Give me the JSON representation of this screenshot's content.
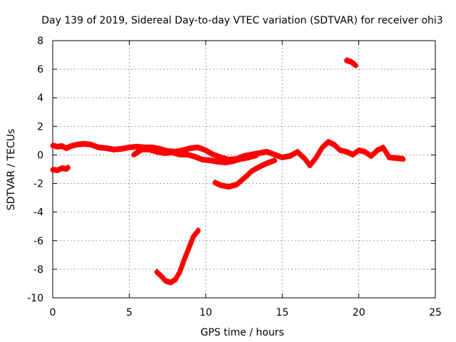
{
  "chart_data": {
    "type": "line",
    "title": "Day 139 of 2019, Sidereal Day-to-day VTEC variation (SDTVAR) for receiver ohi3",
    "xlabel": "GPS time / hours",
    "ylabel": "SDTVAR / TECUs",
    "xlim": [
      0,
      25
    ],
    "ylim": [
      -10,
      8
    ],
    "xticks": [
      0,
      5,
      10,
      15,
      20,
      25
    ],
    "yticks": [
      -10,
      -8,
      -6,
      -4,
      -2,
      0,
      2,
      4,
      6,
      8
    ],
    "grid": true,
    "series_color": "#ff0000",
    "series": [
      {
        "name": "main-band",
        "values": [
          [
            0.0,
            0.65
          ],
          [
            0.3,
            0.55
          ],
          [
            0.6,
            0.6
          ],
          [
            0.9,
            0.45
          ],
          [
            1.2,
            0.6
          ],
          [
            1.6,
            0.7
          ],
          [
            2.0,
            0.75
          ],
          [
            2.5,
            0.7
          ],
          [
            3.0,
            0.5
          ],
          [
            3.5,
            0.45
          ],
          [
            4.0,
            0.35
          ],
          [
            4.5,
            0.4
          ],
          [
            5.0,
            0.5
          ],
          [
            5.5,
            0.55
          ],
          [
            6.0,
            0.5
          ],
          [
            6.5,
            0.5
          ],
          [
            7.0,
            0.4
          ],
          [
            7.5,
            0.25
          ],
          [
            8.0,
            0.2
          ],
          [
            8.5,
            0.3
          ],
          [
            9.0,
            0.45
          ],
          [
            9.5,
            0.5
          ],
          [
            10.0,
            0.3
          ],
          [
            10.5,
            0.0
          ],
          [
            11.0,
            -0.2
          ],
          [
            11.5,
            -0.35
          ],
          [
            12.0,
            -0.3
          ],
          [
            12.5,
            -0.1
          ],
          [
            13.0,
            0.0
          ],
          [
            13.5,
            0.1
          ],
          [
            14.0,
            0.2
          ],
          [
            14.5,
            0.0
          ],
          [
            15.0,
            -0.2
          ],
          [
            15.5,
            -0.1
          ],
          [
            16.0,
            0.2
          ],
          [
            16.5,
            -0.3
          ],
          [
            16.8,
            -0.75
          ],
          [
            17.2,
            -0.2
          ],
          [
            17.6,
            0.5
          ],
          [
            18.0,
            0.9
          ],
          [
            18.4,
            0.7
          ],
          [
            18.8,
            0.3
          ],
          [
            19.2,
            0.2
          ],
          [
            19.6,
            0.0
          ],
          [
            20.0,
            0.3
          ],
          [
            20.4,
            0.2
          ],
          [
            20.8,
            -0.1
          ],
          [
            21.2,
            0.3
          ],
          [
            21.6,
            0.5
          ],
          [
            22.0,
            -0.2
          ],
          [
            22.5,
            -0.25
          ],
          [
            22.9,
            -0.3
          ]
        ]
      },
      {
        "name": "secondary-band",
        "values": [
          [
            5.3,
            0.0
          ],
          [
            5.8,
            0.35
          ],
          [
            6.3,
            0.35
          ],
          [
            6.8,
            0.2
          ],
          [
            7.3,
            0.1
          ],
          [
            7.8,
            0.15
          ],
          [
            8.3,
            0.0
          ],
          [
            8.8,
            0.0
          ],
          [
            9.3,
            -0.15
          ],
          [
            9.8,
            -0.35
          ],
          [
            10.3,
            -0.4
          ],
          [
            10.8,
            -0.5
          ],
          [
            11.3,
            -0.55
          ],
          [
            11.8,
            -0.45
          ],
          [
            12.3,
            -0.3
          ],
          [
            12.8,
            -0.2
          ],
          [
            13.3,
            -0.05
          ]
        ]
      },
      {
        "name": "early-negative-segment",
        "values": [
          [
            0.0,
            -1.05
          ],
          [
            0.3,
            -1.1
          ],
          [
            0.6,
            -0.95
          ],
          [
            0.9,
            -1.0
          ],
          [
            1.0,
            -0.9
          ]
        ]
      },
      {
        "name": "dip-segment",
        "values": [
          [
            10.6,
            -1.95
          ],
          [
            11.0,
            -2.15
          ],
          [
            11.5,
            -2.25
          ],
          [
            12.0,
            -2.1
          ],
          [
            12.5,
            -1.65
          ],
          [
            13.0,
            -1.15
          ],
          [
            13.5,
            -0.85
          ],
          [
            14.0,
            -0.6
          ],
          [
            14.5,
            -0.4
          ]
        ]
      },
      {
        "name": "deep-dip-segment",
        "values": [
          [
            6.8,
            -8.2
          ],
          [
            7.1,
            -8.5
          ],
          [
            7.4,
            -8.85
          ],
          [
            7.7,
            -8.95
          ],
          [
            8.0,
            -8.75
          ],
          [
            8.3,
            -8.2
          ],
          [
            8.6,
            -7.3
          ],
          [
            8.9,
            -6.5
          ],
          [
            9.2,
            -5.7
          ],
          [
            9.5,
            -5.3
          ]
        ]
      },
      {
        "name": "high-segment",
        "values": [
          [
            19.2,
            6.6
          ],
          [
            19.5,
            6.5
          ],
          [
            19.8,
            6.25
          ]
        ]
      }
    ]
  }
}
